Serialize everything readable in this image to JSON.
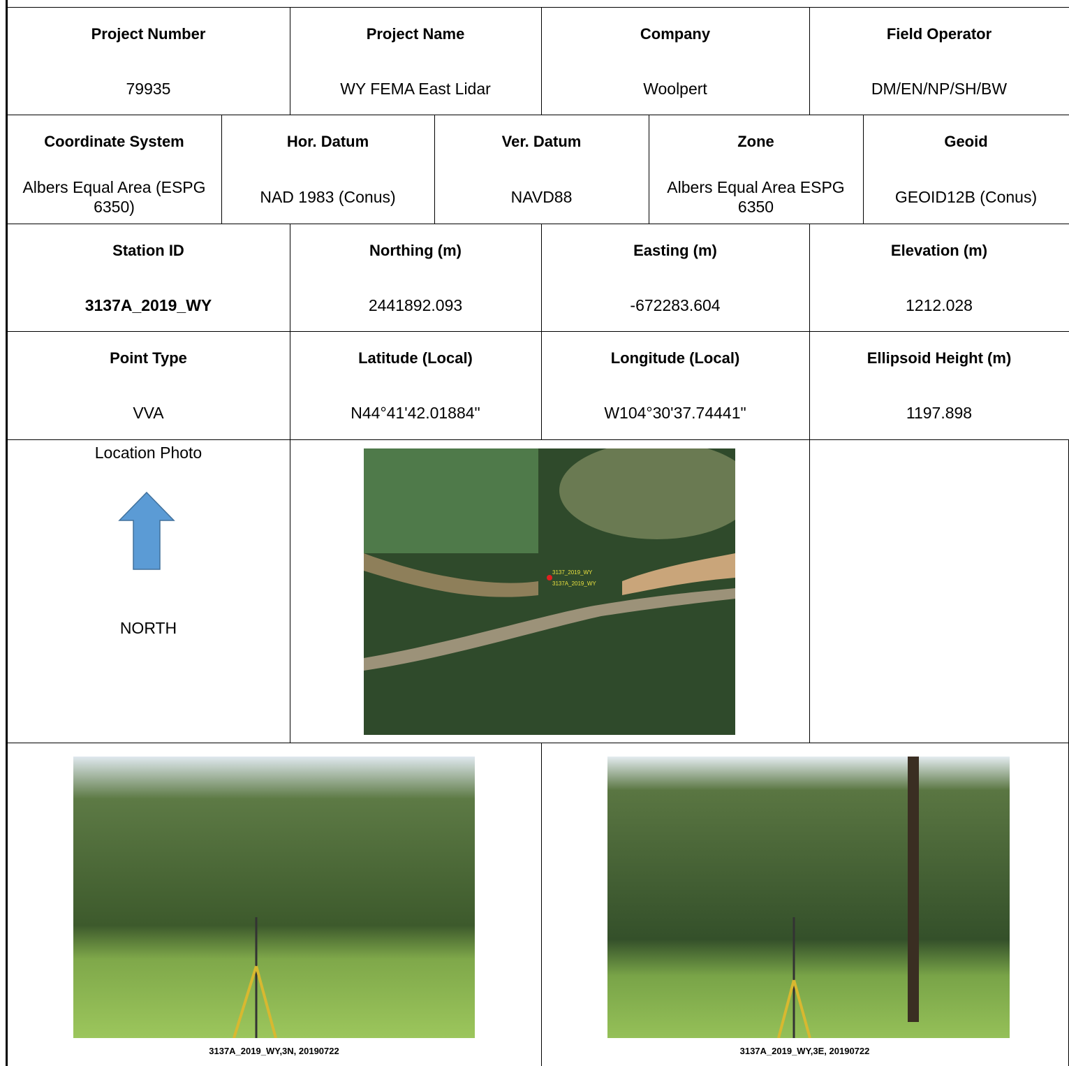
{
  "rows": [
    [
      {
        "label": "Project Number",
        "value": "79935"
      },
      {
        "label": "Project Name",
        "value": "WY FEMA East Lidar"
      },
      {
        "label": "Company",
        "value": "Woolpert"
      },
      {
        "label": "Field Operator",
        "value": "DM/EN/NP/SH/BW"
      }
    ],
    [
      {
        "label": "Coordinate System",
        "value": "Albers Equal Area (ESPG 6350)"
      },
      {
        "label": "Hor. Datum",
        "value": "NAD 1983 (Conus)"
      },
      {
        "label": "Ver. Datum",
        "value": "NAVD88"
      },
      {
        "label": "Zone",
        "value": "Albers Equal Area ESPG 6350"
      },
      {
        "label": "Geoid",
        "value": "GEOID12B (Conus)"
      }
    ],
    [
      {
        "label": "Station ID",
        "value": "3137A_2019_WY"
      },
      {
        "label": "Northing (m)",
        "value": "2441892.093"
      },
      {
        "label": "Easting (m)",
        "value": "-672283.604"
      },
      {
        "label": "Elevation (m)",
        "value": "1212.028"
      }
    ],
    [
      {
        "label": "Point Type",
        "value": "VVA"
      },
      {
        "label": "Latitude (Local)",
        "value": "N44°41'42.01884\""
      },
      {
        "label": "Longitude (Local)",
        "value": "W104°30'37.74441\""
      },
      {
        "label": "Ellipsoid Height (m)",
        "value": "1197.898"
      }
    ]
  ],
  "location": {
    "label": "Location Photo",
    "direction": "NORTH",
    "map_labels": [
      "3137_2019_WY",
      "3137A_2019_WY"
    ]
  },
  "photos": [
    {
      "caption": "3137A_2019_WY,3N, 20190722"
    },
    {
      "caption": "3137A_2019_WY,3E, 20190722"
    }
  ]
}
